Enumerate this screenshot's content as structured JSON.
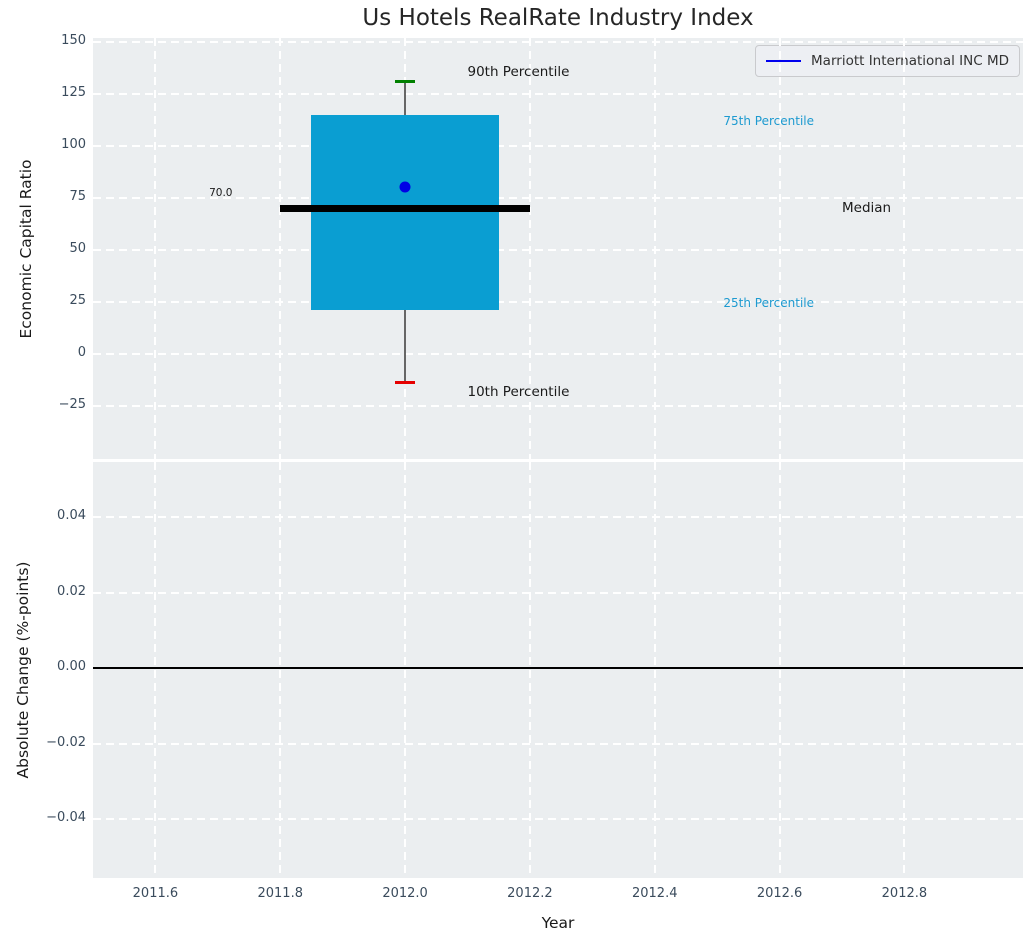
{
  "figure": {
    "title": "Us Hotels RealRate Industry Index",
    "background_color": "#ffffff",
    "axes_background_color": "#ebeef0",
    "grid_color": "#ffffff",
    "tick_label_color": "#3a4b5c"
  },
  "chart_data": [
    {
      "type": "bar",
      "subtype": "boxplot-percentiles",
      "title": "Us Hotels RealRate Industry Index",
      "ylabel": "Economic Capital Ratio",
      "xlim": [
        2011.5,
        2012.99
      ],
      "ylim": [
        -50.5,
        152
      ],
      "grid": "white-dashed",
      "legend_position": "upper right",
      "legend": {
        "label": "Marriott International INC MD",
        "line_color": "#0000ee"
      },
      "yticks": [
        {
          "v": 150,
          "label": "150"
        },
        {
          "v": 125,
          "label": "125"
        },
        {
          "v": 100,
          "label": "100"
        },
        {
          "v": 75,
          "label": "75"
        },
        {
          "v": 50,
          "label": "50"
        },
        {
          "v": 25,
          "label": "25"
        },
        {
          "v": 0,
          "label": "0"
        },
        {
          "v": -25,
          "label": "−25"
        }
      ],
      "box": {
        "x": 2012.0,
        "p10": -13.5,
        "p25": 21,
        "median": 70.0,
        "p75": 115,
        "p90": 131,
        "company_value": 80.5,
        "box_halfwidth_years": 0.15,
        "median_halfwidth_years": 0.2,
        "cap_halfwidth_years": 0.016,
        "box_color": "#0a9ed2",
        "median_color": "#000000",
        "p90_cap_color": "#008000",
        "p10_cap_color": "#e50000",
        "whisker_color": "#666666",
        "marker_color": "#0000e6"
      },
      "annotations": [
        {
          "text": "90th Percentile",
          "x": 2012.1,
          "y": 135.5,
          "color": "#1a1a1a",
          "size": 13.5
        },
        {
          "text": "75th Percentile",
          "x": 2012.51,
          "y": 112,
          "color": "#1d9ad0",
          "size": 12
        },
        {
          "text": "Median",
          "x": 2012.7,
          "y": 70,
          "color": "#1a1a1a",
          "size": 13.5
        },
        {
          "text": "25th Percentile",
          "x": 2012.51,
          "y": 24.5,
          "color": "#1d9ad0",
          "size": 12
        },
        {
          "text": "10th Percentile",
          "x": 2012.1,
          "y": -18.5,
          "color": "#1a1a1a",
          "size": 13.5
        },
        {
          "text": "70.0",
          "x": 2011.686,
          "y": 77.5,
          "color": "#1a1a1a",
          "size": 10.5
        }
      ]
    },
    {
      "type": "line",
      "ylabel": "Absolute Change (%-points)",
      "xlabel": "Year",
      "xlim": [
        2011.5,
        2012.99
      ],
      "ylim": [
        -0.0556,
        0.0546
      ],
      "grid": "white-dashed",
      "zero_line": {
        "y": 0.0,
        "color": "#000000"
      },
      "yticks": [
        {
          "v": 0.04,
          "label": "0.04"
        },
        {
          "v": 0.02,
          "label": "0.02"
        },
        {
          "v": 0.0,
          "label": "0.00"
        },
        {
          "v": -0.02,
          "label": "−0.02"
        },
        {
          "v": -0.04,
          "label": "−0.04"
        }
      ],
      "xticks": [
        {
          "v": 2011.6,
          "label": "2011.6"
        },
        {
          "v": 2011.8,
          "label": "2011.8"
        },
        {
          "v": 2012.0,
          "label": "2012.0"
        },
        {
          "v": 2012.2,
          "label": "2012.2"
        },
        {
          "v": 2012.4,
          "label": "2012.4"
        },
        {
          "v": 2012.6,
          "label": "2012.6"
        },
        {
          "v": 2012.8,
          "label": "2012.8"
        }
      ]
    }
  ]
}
